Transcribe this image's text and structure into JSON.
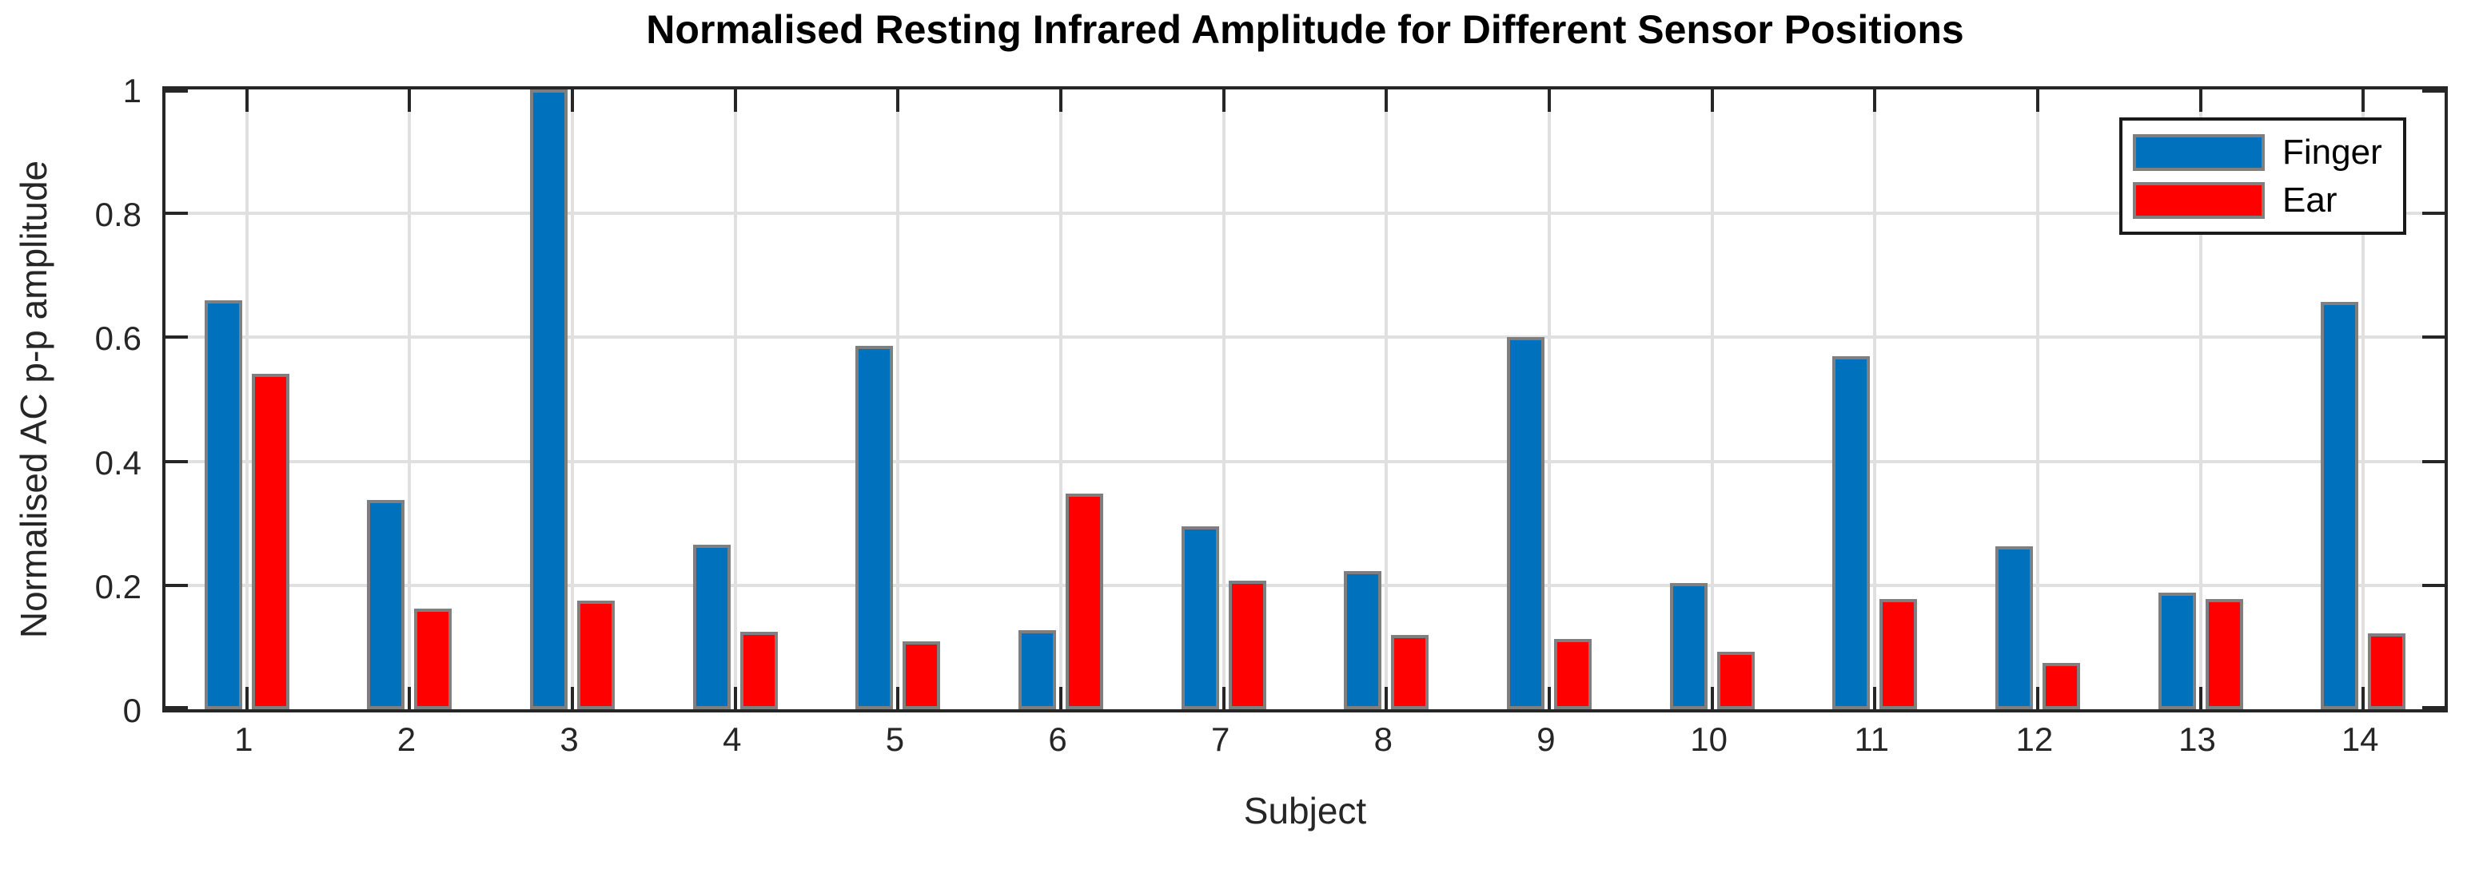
{
  "figure": {
    "title": "Normalised Resting Infrared Amplitude for Different Sensor Positions",
    "xlabel": "Subject",
    "ylabel": "Normalised AC p-p amplitude"
  },
  "legend": {
    "entries": [
      {
        "label": "Finger",
        "color": "#0072BD"
      },
      {
        "label": "Ear",
        "color": "#FF0000"
      }
    ]
  },
  "colors": {
    "finger_bar": "#0072BD",
    "ear_bar": "#FF0000",
    "bar_edge": "#7F7F7F",
    "grid": "#E0E0E0",
    "axis": "#262626",
    "title_text": "#000000"
  },
  "chart_data": {
    "type": "bar",
    "title": "Normalised Resting Infrared Amplitude for Different Sensor Positions",
    "xlabel": "Subject",
    "ylabel": "Normalised AC p-p amplitude",
    "categories": [
      "1",
      "2",
      "3",
      "4",
      "5",
      "6",
      "7",
      "8",
      "9",
      "10",
      "11",
      "12",
      "13",
      "14"
    ],
    "series": [
      {
        "name": "Finger",
        "color": "#0072BD",
        "values": [
          0.66,
          0.338,
          1.0,
          0.265,
          0.586,
          0.127,
          0.295,
          0.223,
          0.6,
          0.203,
          0.569,
          0.263,
          0.188,
          0.657
        ]
      },
      {
        "name": "Ear",
        "color": "#FF0000",
        "values": [
          0.541,
          0.162,
          0.175,
          0.125,
          0.11,
          0.348,
          0.208,
          0.12,
          0.113,
          0.093,
          0.178,
          0.075,
          0.178,
          0.123
        ]
      }
    ],
    "ylim": [
      0,
      1
    ],
    "yticks": [
      0,
      0.2,
      0.4,
      0.6,
      0.8,
      1
    ],
    "ytick_labels": [
      "0",
      "0.2",
      "0.4",
      "0.6",
      "0.8",
      "1"
    ],
    "grid": true,
    "legend_position": "top-right"
  }
}
